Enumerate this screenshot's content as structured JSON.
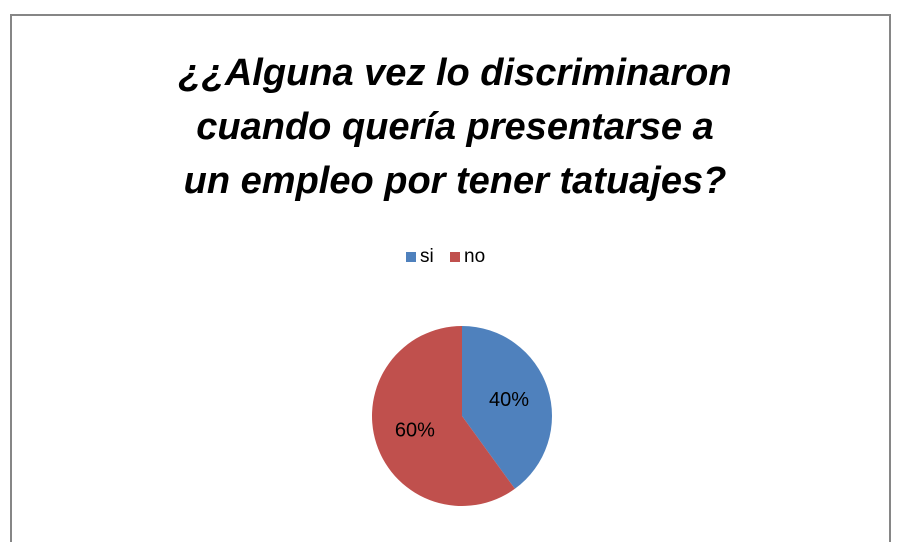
{
  "chart_data": {
    "type": "pie",
    "title": "¿¿Alguna vez lo discriminaron cuando quería presentarse a un empleo por tener tatuajes?",
    "categories": [
      "si",
      "no"
    ],
    "values": [
      40,
      60
    ],
    "value_labels": [
      "40%",
      "60%"
    ],
    "colors": [
      "#4f81bd",
      "#c0504d"
    ],
    "legend": "top"
  }
}
